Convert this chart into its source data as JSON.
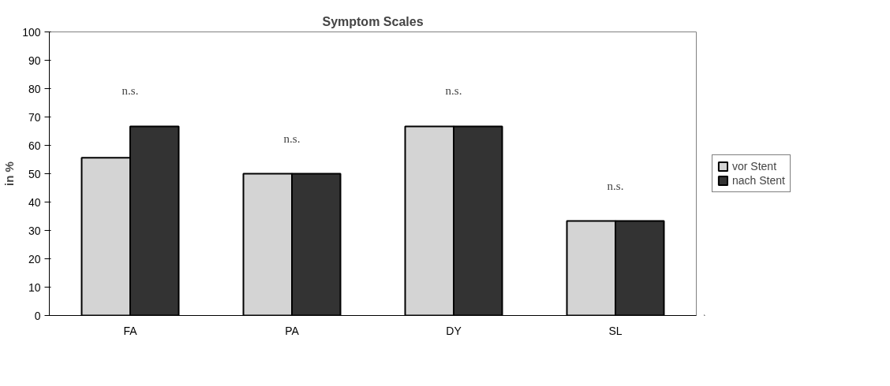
{
  "chart_data": {
    "type": "bar",
    "title": "Symptom Scales",
    "ylabel": "in %",
    "categories": [
      "FA",
      "PA",
      "DY",
      "SL"
    ],
    "series": [
      {
        "name": "vor Stent",
        "color": "#d4d4d4",
        "values": [
          55.6,
          50,
          66.7,
          33.3
        ]
      },
      {
        "name": "nach Stent",
        "color": "#333333",
        "values": [
          66.7,
          50,
          66.7,
          33.3
        ]
      }
    ],
    "ylim": [
      0,
      100
    ],
    "yticks": [
      0,
      10,
      20,
      30,
      40,
      50,
      60,
      70,
      80,
      90,
      100
    ],
    "grid": false,
    "legend": "right",
    "annotations": [
      "n.s.",
      "n.s.",
      "n.s.",
      "n.s."
    ]
  }
}
